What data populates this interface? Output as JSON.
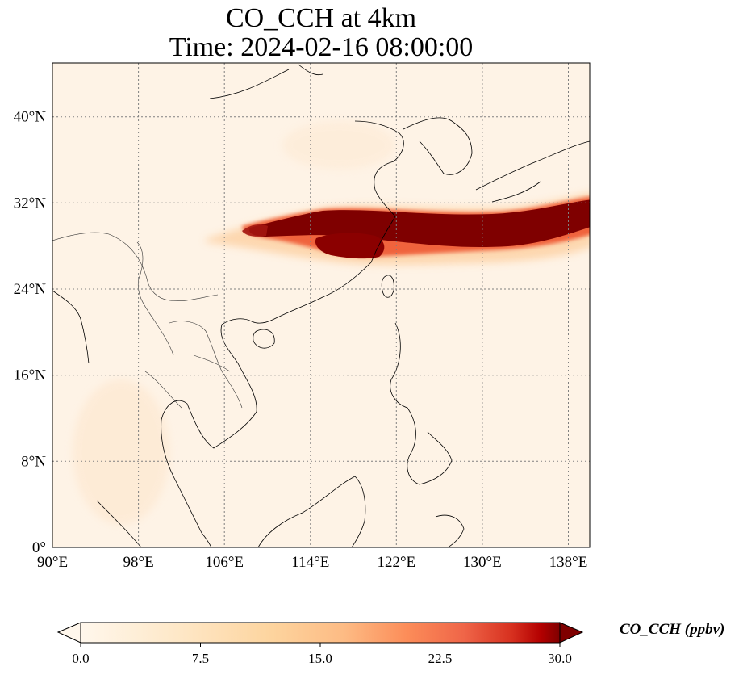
{
  "title": {
    "line1": "CO_CCH at 4km",
    "line2": "Time: 2024-02-16 08:00:00"
  },
  "map": {
    "extent": {
      "lon": [
        90,
        140
      ],
      "lat": [
        0,
        45
      ]
    },
    "gridlines": "dotted",
    "lon_ticks": [
      {
        "value": 90,
        "label": "90°E"
      },
      {
        "value": 98,
        "label": "98°E"
      },
      {
        "value": 106,
        "label": "106°E"
      },
      {
        "value": 114,
        "label": "114°E"
      },
      {
        "value": 122,
        "label": "122°E"
      },
      {
        "value": 130,
        "label": "130°E"
      },
      {
        "value": 138,
        "label": "138°E"
      }
    ],
    "lat_ticks": [
      {
        "value": 0,
        "label": "0°"
      },
      {
        "value": 8,
        "label": "8°N"
      },
      {
        "value": 16,
        "label": "16°N"
      },
      {
        "value": 24,
        "label": "24°N"
      },
      {
        "value": 32,
        "label": "32°N"
      },
      {
        "value": 40,
        "label": "40°N"
      }
    ],
    "field": "CO_CCH",
    "plume_description_lonlat": [
      {
        "lon": 108,
        "lat": 29.5,
        "level": 14
      },
      {
        "lon": 115,
        "lat": 30.5,
        "level": 30
      },
      {
        "lon": 120,
        "lat": 30.0,
        "level": 30
      },
      {
        "lon": 128,
        "lat": 29.8,
        "level": 30
      },
      {
        "lon": 136,
        "lat": 30.5,
        "level": 30
      },
      {
        "lon": 140,
        "lat": 31.8,
        "level": 30
      }
    ]
  },
  "colorbar": {
    "label": "CO_CCH (ppbv)",
    "colormap": "OrRd",
    "extend": "both",
    "range": [
      0,
      30
    ],
    "ticks": [
      {
        "value": 0.0,
        "label": "0.0"
      },
      {
        "value": 7.5,
        "label": "7.5"
      },
      {
        "value": 15.0,
        "label": "15.0"
      },
      {
        "value": 22.5,
        "label": "22.5"
      },
      {
        "value": 30.0,
        "label": "30.0"
      }
    ],
    "colors": {
      "low": "#fff7ec",
      "mid1": "#fdd49e",
      "mid2": "#fc8d59",
      "mid3": "#d7301f",
      "high": "#7f0000"
    }
  }
}
